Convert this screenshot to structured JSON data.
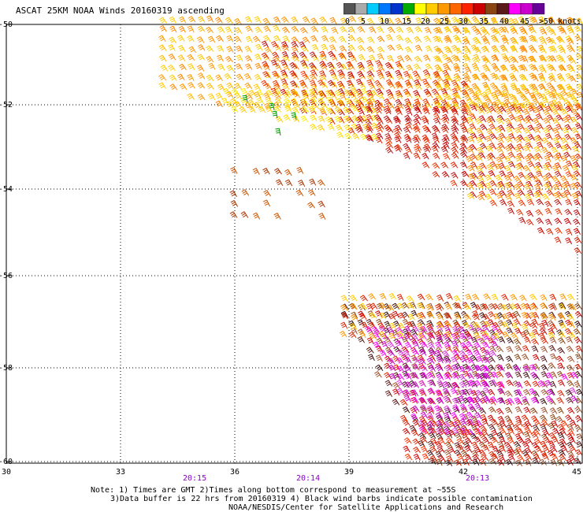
{
  "title": "ASCAT 25KM NOAA Winds 20160319 ascending",
  "colorbar": {
    "labels": [
      "0",
      "5",
      "10",
      "15",
      "20",
      "25",
      "30",
      "35",
      "40",
      "45",
      ">50 knots"
    ],
    "colors": [
      "#555555",
      "#aaaaaa",
      "#00ccff",
      "#0077ff",
      "#0033cc",
      "#00aa00",
      "#ffff00",
      "#ffcc00",
      "#ff9900",
      "#ff6600",
      "#ff2200",
      "#cc0000",
      "#8b4513",
      "#5a1a1a",
      "#ff00ff",
      "#cc00cc",
      "#660099"
    ]
  },
  "map": {
    "lon_range": [
      30,
      45
    ],
    "lat_range": [
      -60,
      -50
    ],
    "lat_labels": [
      "-50",
      "-52",
      "-54",
      "-56",
      "-58",
      "-60"
    ],
    "lon_labels": [
      "30",
      "33",
      "36",
      "39",
      "42",
      "45"
    ],
    "time_labels": [
      "20:15",
      "20:14",
      "20:13"
    ]
  },
  "notes": {
    "line1": "Note: 1) Times are GMT 2)Times along bottom correspond to measurement at ~55S",
    "line2": "3)Data buffer is 22 hrs from 20160319 4) Black wind barbs indicate possible contamination",
    "line3": "NOAA/NESDIS/Center for Satellite Applications and Research"
  }
}
